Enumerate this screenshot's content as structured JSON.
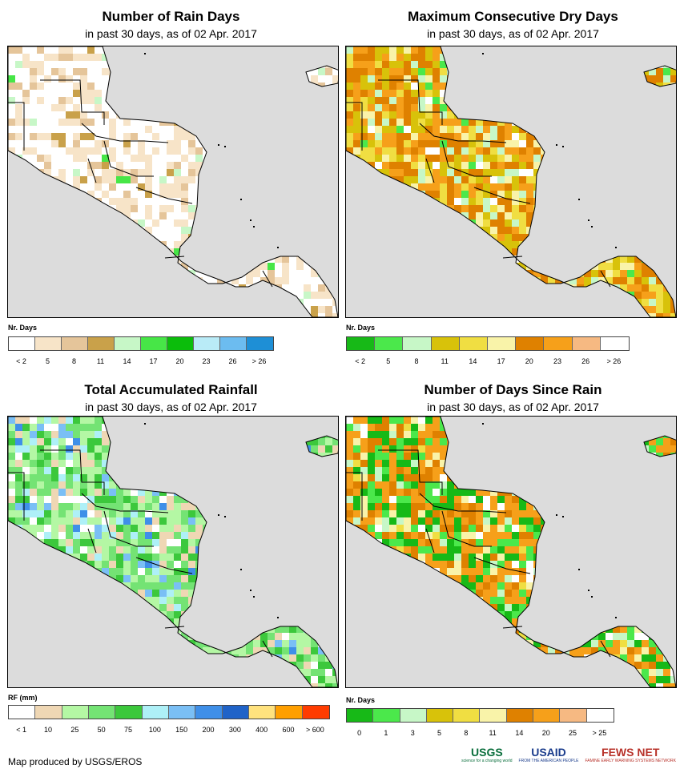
{
  "panels": [
    {
      "id": "rain-days",
      "title": "Number of Rain Days",
      "subtitle": "in past 30 days, as of 02 Apr. 2017",
      "legend_label": "Nr. Days",
      "legend_colors": [
        "#ffffff",
        "#f7e4c8",
        "#e5c59a",
        "#c9a14a",
        "#c7f7c7",
        "#47e647",
        "#0bbd0b",
        "#b9ebf7",
        "#6cbcf0",
        "#1e8fd6"
      ],
      "ticks": [
        "< 2",
        "5",
        "8",
        "11",
        "14",
        "17",
        "20",
        "23",
        "26",
        "> 26"
      ],
      "palette": [
        "#ffffff",
        "#ffffff",
        "#f7e4c8",
        "#f7e4c8",
        "#e5c59a",
        "#c9a14a",
        "#c7f7c7",
        "#47e647"
      ],
      "weights": [
        0.3,
        0.18,
        0.22,
        0.12,
        0.1,
        0.04,
        0.02,
        0.02
      ]
    },
    {
      "id": "max-dry-days",
      "title": "Maximum Consecutive Dry Days",
      "subtitle": "in past 30 days, as of 02 Apr. 2017",
      "legend_label": "Nr. Days",
      "legend_colors": [
        "#17b917",
        "#4be84b",
        "#c7f7c7",
        "#d8c20a",
        "#f0de42",
        "#f9f3a9",
        "#df8100",
        "#f6a01a",
        "#f6b982",
        "#ffffff"
      ],
      "ticks": [
        "< 2",
        "5",
        "8",
        "11",
        "14",
        "17",
        "20",
        "23",
        "26",
        "> 26"
      ],
      "palette": [
        "#df8100",
        "#f6a01a",
        "#d8c20a",
        "#f0de42",
        "#f9f3a9",
        "#c7f7c7",
        "#ffffff",
        "#4be84b"
      ],
      "weights": [
        0.26,
        0.18,
        0.16,
        0.14,
        0.1,
        0.08,
        0.05,
        0.03
      ]
    },
    {
      "id": "total-rainfall",
      "title": "Total Accumulated Rainfall",
      "subtitle": "in past 30 days, as of 02 Apr. 2017",
      "legend_label": "RF (mm)",
      "legend_colors": [
        "#ffffff",
        "#efd7b4",
        "#b4f7a4",
        "#74e374",
        "#3cc83c",
        "#aef0f7",
        "#7abff5",
        "#3f8fe8",
        "#2063c8",
        "#ffe27e",
        "#ff9f00",
        "#ff3c00"
      ],
      "ticks": [
        "< 1",
        "10",
        "25",
        "50",
        "75",
        "100",
        "150",
        "200",
        "300",
        "400",
        "600",
        "> 600"
      ],
      "palette": [
        "#b4f7a4",
        "#74e374",
        "#3cc83c",
        "#efd7b4",
        "#ffffff",
        "#aef0f7",
        "#7abff5",
        "#3f8fe8"
      ],
      "weights": [
        0.26,
        0.24,
        0.14,
        0.14,
        0.08,
        0.07,
        0.05,
        0.02
      ]
    },
    {
      "id": "days-since-rain",
      "title": "Number of Days Since Rain",
      "subtitle": "in past 30 days, as of 02 Apr. 2017",
      "legend_label": "Nr. Days",
      "legend_colors": [
        "#17b917",
        "#4be84b",
        "#c7f7c7",
        "#d8c20a",
        "#f0de42",
        "#f9f3a9",
        "#df8100",
        "#f6a01a",
        "#f6b982",
        "#ffffff"
      ],
      "ticks": [
        "0",
        "1",
        "3",
        "5",
        "8",
        "11",
        "14",
        "20",
        "25",
        "> 25"
      ],
      "palette": [
        "#f6a01a",
        "#df8100",
        "#17b917",
        "#4be84b",
        "#f9f3a9",
        "#c7f7c7",
        "#ffffff",
        "#f0de42"
      ],
      "weights": [
        0.3,
        0.18,
        0.16,
        0.12,
        0.08,
        0.08,
        0.05,
        0.03
      ]
    }
  ],
  "chart_data": [
    {
      "type": "heatmap",
      "title": "Number of Rain Days",
      "subtitle": "in past 30 days, as of 02 Apr. 2017",
      "legend_title": "Nr. Days",
      "bins": [
        "< 2",
        "5",
        "8",
        "11",
        "14",
        "17",
        "20",
        "23",
        "26",
        "> 26"
      ]
    },
    {
      "type": "heatmap",
      "title": "Maximum Consecutive Dry Days",
      "subtitle": "in past 30 days, as of 02 Apr. 2017",
      "legend_title": "Nr. Days",
      "bins": [
        "< 2",
        "5",
        "8",
        "11",
        "14",
        "17",
        "20",
        "23",
        "26",
        "> 26"
      ]
    },
    {
      "type": "heatmap",
      "title": "Total Accumulated Rainfall",
      "subtitle": "in past 30 days, as of 02 Apr. 2017",
      "legend_title": "RF (mm)",
      "bins": [
        "< 1",
        "10",
        "25",
        "50",
        "75",
        "100",
        "150",
        "200",
        "300",
        "400",
        "600",
        "> 600"
      ]
    },
    {
      "type": "heatmap",
      "title": "Number of Days Since Rain",
      "subtitle": "in past 30 days, as of 02 Apr. 2017",
      "legend_title": "Nr. Days",
      "bins": [
        "0",
        "1",
        "3",
        "5",
        "8",
        "11",
        "14",
        "20",
        "25",
        "> 25"
      ]
    }
  ],
  "footer": {
    "credit": "Map produced by USGS/EROS",
    "logos": [
      {
        "name": "usgs",
        "text": "USGS",
        "tag": "science for a changing world",
        "color": "#0a6e3c"
      },
      {
        "name": "usaid",
        "text": "USAID",
        "tag": "FROM THE AMERICAN PEOPLE",
        "color": "#1a3c8c"
      },
      {
        "name": "fews-net",
        "text": "FEWS NET",
        "tag": "FAMINE EARLY WARNING SYSTEMS NETWORK",
        "color": "#b8322a"
      }
    ]
  }
}
